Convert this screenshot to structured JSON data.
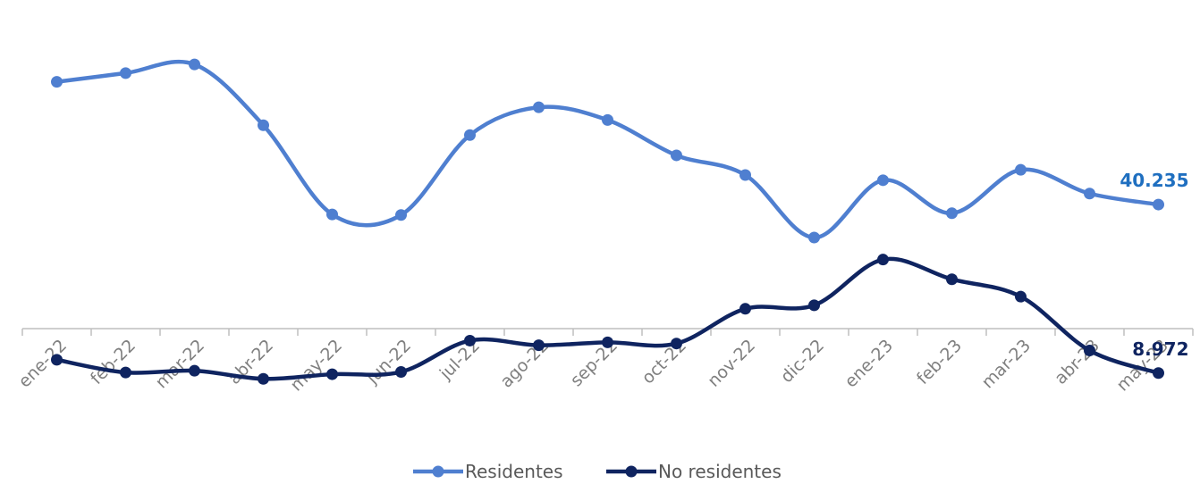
{
  "chart_data": {
    "type": "line",
    "smooth": true,
    "categories": [
      "ene-22",
      "feb-22",
      "mar-22",
      "abr-22",
      "may-22",
      "jun-22",
      "jul-22",
      "ago-22",
      "sep-22",
      "oct-22",
      "nov-22",
      "dic-22",
      "ene-23",
      "feb-23",
      "mar-23",
      "abr-23",
      "may-23"
    ],
    "series": [
      {
        "name": "Residentes",
        "color": "#4f7fd0",
        "values": [
          77500,
          79000,
          80500,
          70000,
          54600,
          54500,
          68300,
          73100,
          70900,
          64800,
          61400,
          50600,
          60500,
          54800,
          62300,
          58200,
          56300
        ],
        "end_label": "40.235",
        "end_label_color": "#1f6fc0"
      },
      {
        "name": "No residentes",
        "color": "#0f2460",
        "values": [
          29500,
          27300,
          27600,
          26200,
          27000,
          27400,
          32800,
          32000,
          32500,
          32300,
          38300,
          38900,
          46800,
          43400,
          40400,
          31100,
          27200
        ],
        "end_label": "8.972",
        "end_label_color": "#0f2460"
      }
    ],
    "ylim": [
      23000,
      87000
    ],
    "grid": false,
    "legend": "bottom-center",
    "title": "",
    "xlabel": "",
    "ylabel": ""
  }
}
